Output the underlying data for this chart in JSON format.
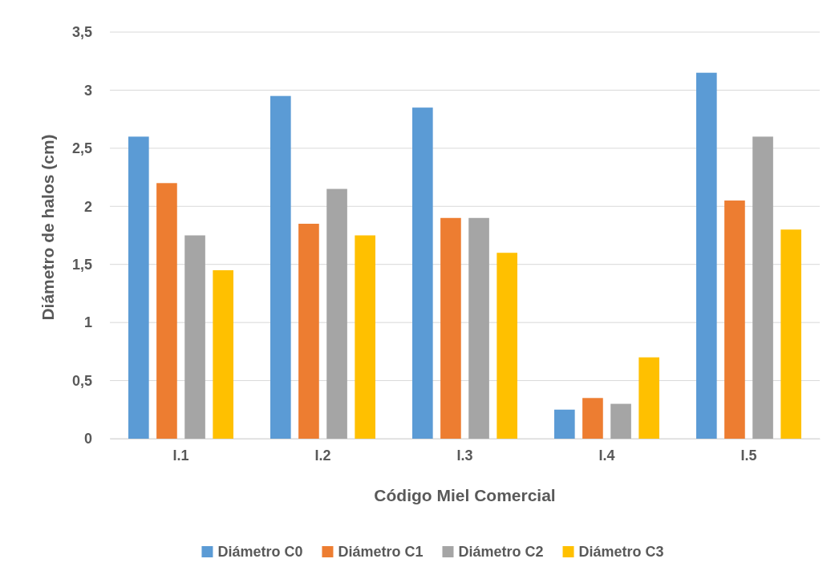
{
  "chart_data": {
    "type": "bar",
    "xlabel": "Código Miel Comercial",
    "ylabel": "Diámetro de halos (cm)",
    "categories": [
      "I.1",
      "I.2",
      "I.3",
      "I.4",
      "I.5"
    ],
    "series": [
      {
        "name": "Diámetro C0",
        "color": "#5b9bd5",
        "values": [
          2.6,
          2.95,
          2.85,
          0.25,
          3.15
        ]
      },
      {
        "name": "Diámetro C1",
        "color": "#ed7d31",
        "values": [
          2.2,
          1.85,
          1.9,
          0.35,
          2.05
        ]
      },
      {
        "name": "Diámetro C2",
        "color": "#a5a5a5",
        "values": [
          1.75,
          2.15,
          1.9,
          0.3,
          2.6
        ]
      },
      {
        "name": "Diámetro C3",
        "color": "#ffc000",
        "values": [
          1.45,
          1.75,
          1.6,
          0.7,
          1.8
        ]
      }
    ],
    "ylim": [
      0,
      3.5
    ],
    "yticks": [
      0,
      {
        "value": 0.5,
        "label": "0,5"
      },
      1,
      {
        "value": 1.5,
        "label": "1,5"
      },
      2,
      {
        "value": 2.5,
        "label": "2,5"
      },
      3,
      {
        "value": 3.5,
        "label": "3,5"
      }
    ],
    "grid": "y",
    "legend": "bottom"
  }
}
